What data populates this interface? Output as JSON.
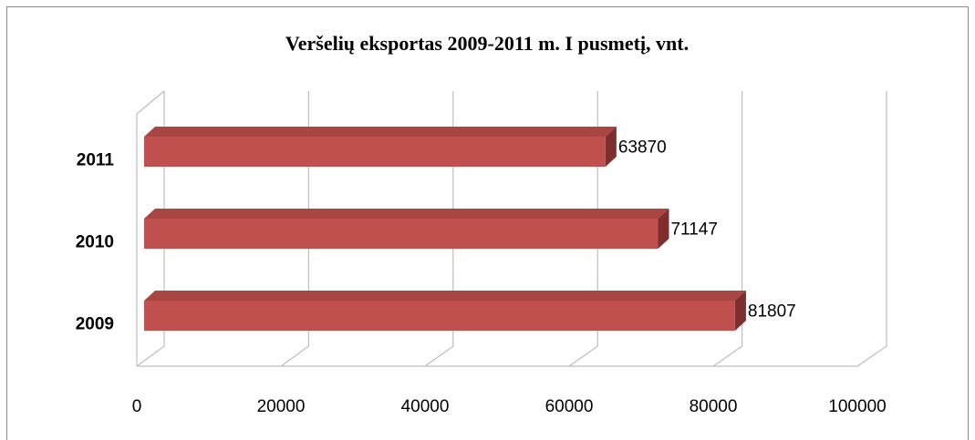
{
  "chart_data": {
    "type": "bar",
    "orientation": "horizontal",
    "title": "Veršelių eksportas 2009-2011 m. I pusmetį, vnt.",
    "categories": [
      "2009",
      "2010",
      "2011"
    ],
    "values": [
      81807,
      71147,
      63870
    ],
    "color": "#c0504d",
    "xlim": [
      0,
      100000
    ],
    "xticks": [
      0,
      20000,
      40000,
      60000,
      80000,
      100000
    ],
    "grid": true
  }
}
